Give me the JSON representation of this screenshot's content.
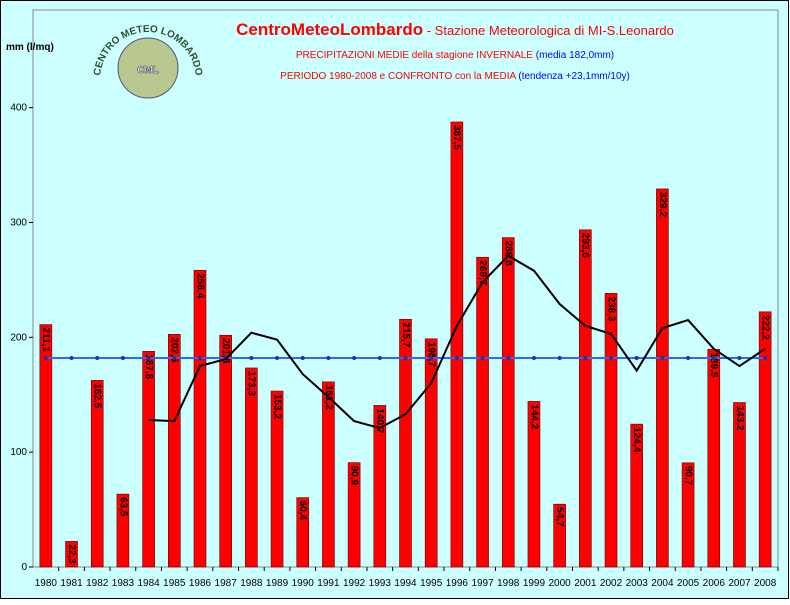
{
  "chart_data": {
    "type": "bar",
    "title": {
      "main": "CentroMeteoLombardo",
      "main_sub": " - Stazione Meteorologica di MI-S.Leonardo",
      "line2": "PRECIPITAZIONI MEDIE della stagione INVERNALE ",
      "line2_blue": "(media 182,0mm)",
      "line3": "PERIODO 1980-2008 e CONFRONTO con la MEDIA ",
      "line3_blue": "(tendenza +23,1mm/10y)"
    },
    "logo": {
      "ring": "CENTRO METEO LOMBARDO",
      "center": "CML"
    },
    "y_label": "mm (l/mq)",
    "categories": [
      "1980",
      "1981",
      "1982",
      "1983",
      "1984",
      "1985",
      "1986",
      "1987",
      "1988",
      "1989",
      "1990",
      "1991",
      "1992",
      "1993",
      "1994",
      "1995",
      "1996",
      "1997",
      "1998",
      "1999",
      "2000",
      "2001",
      "2002",
      "2003",
      "2004",
      "2005",
      "2006",
      "2007",
      "2008"
    ],
    "values": [
      211.1,
      22.3,
      162.5,
      63.5,
      187.8,
      202.6,
      258.4,
      201.8,
      173.3,
      153.2,
      60.4,
      161.2,
      90.9,
      140.7,
      215.7,
      198.7,
      387.5,
      269.7,
      286.8,
      144.2,
      54.7,
      293.6,
      238.3,
      124.4,
      329.2,
      90.7,
      189.5,
      143.2,
      222.2
    ],
    "value_labels": [
      "211,1",
      "22,3",
      "162,5",
      "63,5",
      "187,8",
      "202,6",
      "258,4",
      "201,8",
      "173,3",
      "153,2",
      "60,4",
      "161,2",
      "90,9",
      "140,7",
      "215,7",
      "198,7",
      "387,5",
      "269,7",
      "286,8",
      "144,2",
      "54,7",
      "293,6",
      "238,3",
      "124,4",
      "329,2",
      "90,7",
      "189,5",
      "143,2",
      "222,2"
    ],
    "color": "#ff0000",
    "mean": 182,
    "mean_color": "#3366ff",
    "trend": {
      "color": "#000000",
      "values": [
        null,
        null,
        null,
        null,
        128,
        127,
        175,
        181,
        204,
        198,
        168,
        148,
        127,
        121,
        133,
        160,
        210,
        248,
        271,
        258,
        229,
        210,
        203,
        171,
        208,
        215,
        190,
        175,
        190
      ]
    },
    "ylim": [
      0,
      485
    ],
    "yticks": [
      0,
      100,
      200,
      300,
      400
    ],
    "grid": false
  }
}
